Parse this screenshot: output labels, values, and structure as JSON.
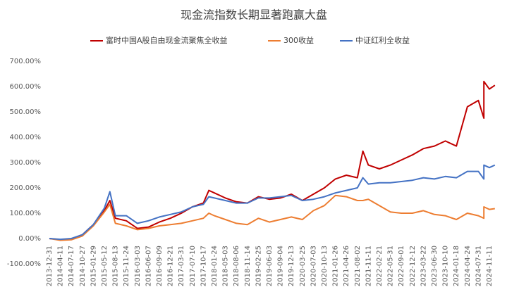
{
  "chart_data": {
    "type": "line",
    "title": "现金流指数长期显著跑赢大盘",
    "categories": [
      "2013-12-31",
      "2014-04-11",
      "2014-07-17",
      "2014-10-27",
      "2015-01-29",
      "2015-05-12",
      null,
      "2015-08-13",
      "2015-11-24",
      "2016-03-03",
      "2016-06-07",
      "2016-09-09",
      "2016-12-21",
      "2017-03-31",
      "2017-07-10",
      "2017-10-17",
      null,
      "2018-01-24",
      "2018-05-03",
      "2018-08-06",
      "2018-11-14",
      "2019-02-25",
      "2019-06-03",
      "2019-09-04",
      "2019-12-13",
      "2020-03-25",
      "2020-07-03",
      "2020-10-13",
      "2021-01-26",
      "2021-04-26",
      "2021-08-02",
      null,
      "2021-11-11",
      "2022-02-21",
      "2022-05-31",
      "2022-09-01",
      "2022-12-12",
      "2023-03-22",
      "2023-06-30",
      "2023-10-10",
      "2024-01-18",
      "2024-04-24",
      "2024-07-31",
      null,
      null,
      "2024-11-11",
      null
    ],
    "series": [
      {
        "name": "富时中国A股自由现金流聚焦全收益",
        "color": "#c00000",
        "values": [
          0,
          -5,
          -2,
          15,
          55,
          110,
          150,
          80,
          70,
          40,
          45,
          65,
          80,
          100,
          125,
          140,
          190,
          180,
          160,
          145,
          140,
          165,
          155,
          160,
          175,
          150,
          175,
          200,
          235,
          250,
          240,
          345,
          290,
          275,
          290,
          310,
          330,
          355,
          365,
          385,
          365,
          520,
          545,
          475,
          620,
          590,
          605
        ]
      },
      {
        "name": "300收益",
        "color": "#ed7d31",
        "values": [
          0,
          -7,
          -5,
          10,
          50,
          105,
          135,
          60,
          50,
          35,
          40,
          50,
          55,
          60,
          70,
          80,
          100,
          90,
          75,
          60,
          55,
          80,
          65,
          75,
          85,
          75,
          110,
          130,
          170,
          165,
          150,
          150,
          155,
          130,
          105,
          100,
          100,
          110,
          95,
          90,
          75,
          100,
          90,
          80,
          125,
          115,
          118
        ]
      },
      {
        "name": "中证红利全收益",
        "color": "#4472c4",
        "values": [
          0,
          -3,
          0,
          15,
          55,
          120,
          185,
          90,
          90,
          60,
          70,
          85,
          95,
          105,
          125,
          135,
          165,
          160,
          150,
          140,
          140,
          160,
          160,
          165,
          170,
          150,
          155,
          165,
          180,
          190,
          200,
          240,
          215,
          220,
          220,
          225,
          230,
          240,
          235,
          245,
          240,
          265,
          265,
          235,
          290,
          280,
          290
        ]
      }
    ],
    "ylim": [
      -100,
      700
    ],
    "yticks": [
      {
        "value": -100,
        "label": "-100.00%"
      },
      {
        "value": 0,
        "label": "0.00%"
      },
      {
        "value": 100,
        "label": "100.00%"
      },
      {
        "value": 200,
        "label": "200.00%"
      },
      {
        "value": 300,
        "label": "300.00%"
      },
      {
        "value": 400,
        "label": "400.00%"
      },
      {
        "value": 500,
        "label": "500.00%"
      },
      {
        "value": 600,
        "label": "600.00%"
      },
      {
        "value": 700,
        "label": "700.00%"
      }
    ],
    "grid": false
  }
}
